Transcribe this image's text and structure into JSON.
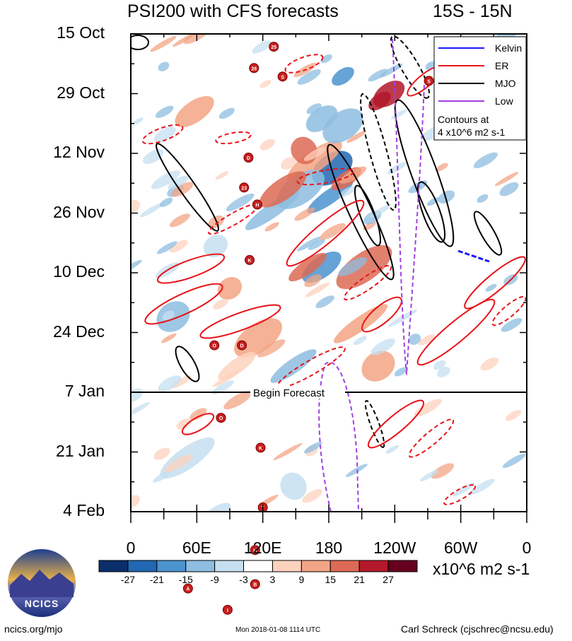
{
  "header": {
    "title_left": "PSI200 with CFS forecasts",
    "title_right": "15S - 15N"
  },
  "chart_data": {
    "type": "heatmap",
    "title": "PSI200 with CFS forecasts",
    "region": "15S - 15N",
    "x_ticks": [
      "0",
      "60E",
      "120E",
      "180",
      "120W",
      "60W",
      "0"
    ],
    "y_ticks": [
      "15 Oct",
      "29 Oct",
      "12 Nov",
      "26 Nov",
      "10 Dec",
      "24 Dec",
      "7 Jan",
      "21 Jan",
      "4 Feb"
    ],
    "forecast_line": {
      "date": "7 Jan",
      "label": "Begin Forecast"
    },
    "legend": {
      "entries": [
        {
          "name": "Kelvin",
          "color": "#1a1aff",
          "style": "solid"
        },
        {
          "name": "ER",
          "color": "#e8141a",
          "style": "solid"
        },
        {
          "name": "MJO",
          "color": "#000000",
          "style": "solid"
        },
        {
          "name": "Low",
          "color": "#a040e0",
          "style": "solid"
        }
      ],
      "note_line1": "Contours at",
      "note_line2": "4 x10^6 m2 s-1",
      "placement": "top-right"
    },
    "colorbar": {
      "ticks": [
        "-27",
        "-21",
        "-15",
        "-9",
        "-3",
        "3",
        "9",
        "15",
        "21",
        "27"
      ],
      "colors": [
        "#0b2f6b",
        "#2167b3",
        "#4b93cf",
        "#8dbde0",
        "#c6dff0",
        "#ffffff",
        "#fdd2bd",
        "#f3a484",
        "#dd6a55",
        "#b3192b",
        "#67001f"
      ],
      "units": "x10^6 m2 s-1"
    },
    "storms": [
      {
        "lon": 112,
        "day": 8,
        "label": "26"
      },
      {
        "lon": 138,
        "day": 10,
        "label": "S"
      },
      {
        "lon": 130,
        "day": 3,
        "label": "25"
      },
      {
        "lon": 107,
        "day": 29,
        "label": "D"
      },
      {
        "lon": 103,
        "day": 36,
        "label": "23"
      },
      {
        "lon": 115,
        "day": 40,
        "label": "H"
      },
      {
        "lon": 108,
        "day": 53,
        "label": "K"
      },
      {
        "lon": 76,
        "day": 73,
        "label": "O"
      },
      {
        "lon": 101,
        "day": 73,
        "label": "D"
      },
      {
        "lon": 82,
        "day": 90,
        "label": "O"
      },
      {
        "lon": 118,
        "day": 97,
        "label": "K"
      },
      {
        "lon": 120,
        "day": 111,
        "label": "T"
      },
      {
        "lon": 113,
        "day": 121,
        "label": "H"
      },
      {
        "lon": 113,
        "day": 129,
        "label": "B"
      },
      {
        "lon": 52,
        "day": 130,
        "label": "A"
      },
      {
        "lon": 88,
        "day": 135,
        "label": "I"
      },
      {
        "lon": 271,
        "day": 11,
        "label": "S"
      }
    ]
  },
  "footer": {
    "left": "ncics.org/mjo",
    "center": "Mon 2018-01-08 1114 UTC",
    "right": "Carl Schreck (cjschrec@ncsu.edu)",
    "logo_text": "NCICS"
  }
}
